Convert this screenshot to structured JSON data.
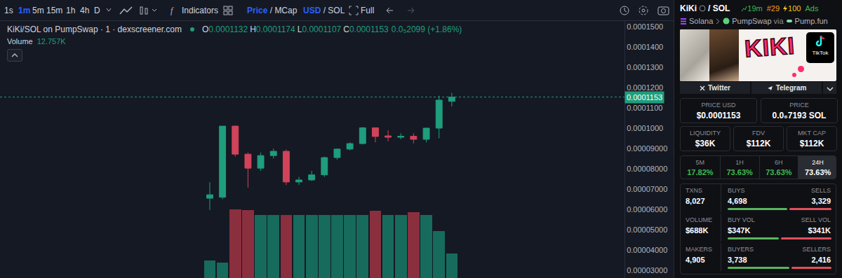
{
  "chart_data": {
    "type": "candlestick",
    "title": "KiKi/SOL on PumpSwap · 1 · dexscreener.com",
    "ohlc_header": [
      {
        "key": "O",
        "label": "0.0001132"
      },
      {
        "key": "H",
        "label": "0.0001174"
      },
      {
        "key": "L",
        "label": "0.0001107"
      },
      {
        "key": "C",
        "label": "0.0001153"
      }
    ],
    "change_label": "0.0₅2099 (+1.86%)",
    "x": [
      1,
      2,
      3,
      4,
      5,
      6,
      7,
      8,
      9,
      10,
      11,
      12,
      13,
      14,
      15,
      16,
      17,
      18,
      19,
      20
    ],
    "series": [
      {
        "type": "candlestick",
        "colors": [
          "#1e9e7c",
          "#d1435b"
        ],
        "open": [
          6.55e-05,
          6.6e-05,
          0.000101,
          8.72e-05,
          8.03e-05,
          8.65e-05,
          8.86e-05,
          7.35e-05,
          7.45e-05,
          7.7e-05,
          8.55e-05,
          8.97e-05,
          9.24e-05,
          0.0001002,
          9.62e-05,
          9.55e-05,
          9.6e-05,
          9.45e-05,
          0.0001,
          0.0001132
        ],
        "high": [
          7.34e-05,
          0.000101,
          0.0001013,
          8.8e-05,
          8.8e-05,
          9e-05,
          8.95e-05,
          7.6e-05,
          7.9e-05,
          8.6e-05,
          9e-05,
          9.3e-05,
          0.0001005,
          0.0001003,
          9.9e-05,
          9.75e-05,
          9.75e-05,
          0.0001003,
          0.000116,
          0.0001174
        ],
        "low": [
          5.97e-05,
          6.5e-05,
          8.6e-05,
          7.07e-05,
          7.9e-05,
          8.5e-05,
          7.2e-05,
          7.2e-05,
          7.4e-05,
          7.6e-05,
          8.45e-05,
          8.9e-05,
          9.2e-05,
          9.3e-05,
          9.35e-05,
          9.45e-05,
          9.25e-05,
          9.3e-05,
          9.5e-05,
          0.0001107
        ],
        "close": [
          6.72e-05,
          0.000101,
          8.72e-05,
          8.03e-05,
          8.65e-05,
          8.86e-05,
          7.35e-05,
          7.45e-05,
          7.7e-05,
          8.55e-05,
          8.97e-05,
          9.24e-05,
          0.0001002,
          9.59e-05,
          9.55e-05,
          9.6e-05,
          9.45e-05,
          0.0001,
          0.0001138,
          0.0001153
        ]
      },
      {
        "type": "bar",
        "axis": "y2",
        "name": "Volume",
        "current_label": "12.757K",
        "values": [
          9100,
          8000,
          35700,
          35400,
          32800,
          32800,
          32800,
          32800,
          32800,
          32800,
          32800,
          32800,
          32800,
          35000,
          32800,
          32800,
          34300,
          32800,
          24400,
          12757
        ],
        "colors": [
          "#166b5c",
          "#166b5c",
          "#8a2f3e",
          "#8a2f3e",
          "#166b5c",
          "#166b5c",
          "#8a2f3e",
          "#166b5c",
          "#166b5c",
          "#166b5c",
          "#166b5c",
          "#166b5c",
          "#166b5c",
          "#8a2f3e",
          "#166b5c",
          "#166b5c",
          "#8a2f3e",
          "#166b5c",
          "#166b5c",
          "#166b5c"
        ]
      }
    ],
    "last_price": {
      "value": 0.0001153,
      "label": "0.0001153",
      "color": "#1e9e7c"
    },
    "xlim": [
      -15.47,
      33.56
    ],
    "xticks": [],
    "ylim": [
      2.622e-05,
      0.00015276
    ],
    "yticks": [
      {
        "value": 0.00015,
        "label": "0.0001500"
      },
      {
        "value": 0.00014,
        "label": "0.0001400"
      },
      {
        "value": 0.00013,
        "label": "0.0001300"
      },
      {
        "value": 0.00012,
        "label": "0.0001200"
      },
      {
        "value": 0.00011,
        "label": "0.0001100"
      },
      {
        "value": 0.0001,
        "label": "0.0001000"
      },
      {
        "value": 9e-05,
        "label": "0.00009000"
      },
      {
        "value": 8e-05,
        "label": "0.00008000"
      },
      {
        "value": 7e-05,
        "label": "0.00007000"
      },
      {
        "value": 6e-05,
        "label": "0.00006000"
      },
      {
        "value": 5e-05,
        "label": "0.00005000"
      },
      {
        "value": 4e-05,
        "label": "0.00004000"
      },
      {
        "value": 3e-05,
        "label": "0.00003000"
      }
    ],
    "y2lim": [
      0,
      133800
    ],
    "y2ticks": [],
    "grid": false,
    "tick_labels": "y"
  },
  "toolbar": {
    "intervals": [
      "1s",
      "1m",
      "5m",
      "15m",
      "1h",
      "4h",
      "D"
    ],
    "active_interval": "1m",
    "indicators": "Indicators",
    "price_toggle": {
      "active": "Price",
      "sep": "/",
      "other": "MCap"
    },
    "currency_toggle": {
      "active": "USD",
      "sep": "/",
      "other": "SOL"
    },
    "full": "Full"
  },
  "pair_panel": {
    "token": "KiKi",
    "quote": "/ SOL",
    "age": "19m",
    "rank": "#29",
    "boosts": "100",
    "ads": "Ads",
    "chain": "Solana",
    "dex": "PumpSwap",
    "via": "via",
    "launchpad": "Pump.fun",
    "banner_text": "KIKI",
    "banner_badge": "TikTok",
    "links": [
      "Twitter",
      "Telegram"
    ],
    "price_boxes": [
      {
        "label": "PRICE USD",
        "value": "$0.0001153"
      },
      {
        "label": "PRICE",
        "value": "0.0₆7193 SOL"
      }
    ],
    "stat_boxes": [
      {
        "label": "LIQUIDITY",
        "value": "$36K"
      },
      {
        "label": "FDV",
        "value": "$112K"
      },
      {
        "label": "MKT CAP",
        "value": "$112K"
      }
    ],
    "changes": [
      {
        "label": "5M",
        "value": "17.82%"
      },
      {
        "label": "1H",
        "value": "73.63%"
      },
      {
        "label": "6H",
        "value": "73.63%"
      },
      {
        "label": "24H",
        "value": "73.63%"
      }
    ],
    "active_change": "24H",
    "activity": [
      {
        "label": "TXNS",
        "total": "8,027",
        "left": {
          "label": "BUYS",
          "value": 4698,
          "text": "4,698"
        },
        "right": {
          "label": "SELLS",
          "value": 3329,
          "text": "3,329"
        }
      },
      {
        "label": "VOLUME",
        "total": "$688K",
        "left": {
          "label": "BUY VOL",
          "value": 347000,
          "text": "$347K"
        },
        "right": {
          "label": "SELL VOL",
          "value": 341000,
          "text": "$341K"
        }
      },
      {
        "label": "MAKERS",
        "total": "4,905",
        "left": {
          "label": "BUYERS",
          "value": 3738,
          "text": "3,738"
        },
        "right": {
          "label": "SELLERS",
          "value": 2416,
          "text": "2,416"
        }
      }
    ]
  }
}
